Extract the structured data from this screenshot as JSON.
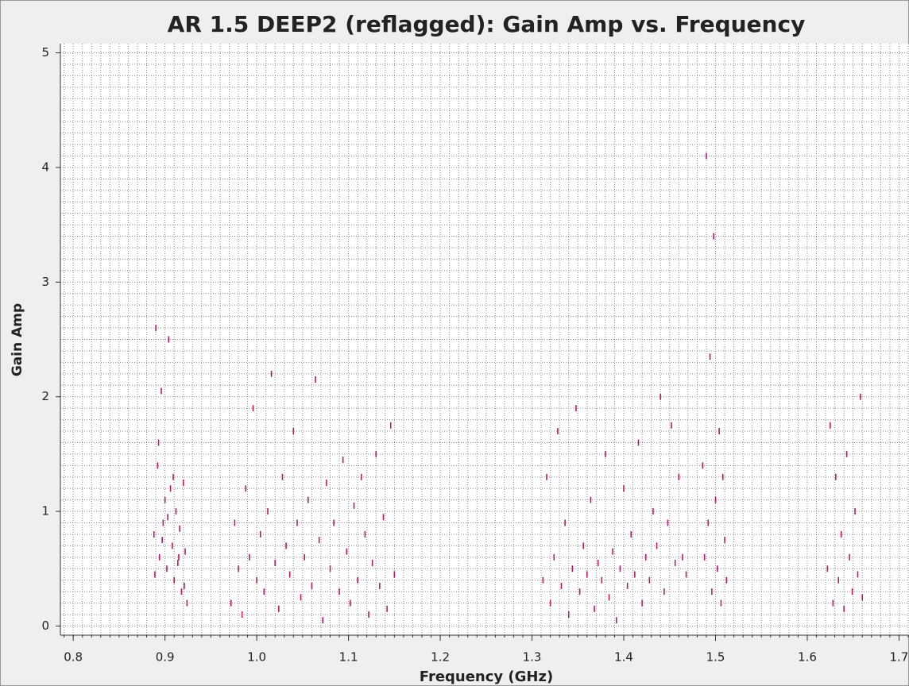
{
  "chart_data": {
    "type": "scatter",
    "title": "AR 1.5 DEEP2 (reflagged): Gain Amp vs. Frequency",
    "x_label": "Frequency (GHz)",
    "y_label": "Gain Amp",
    "color": "#c0175a",
    "grid": true,
    "minor_grid": {
      "x": 0.01,
      "y": 0.1
    },
    "xlim": [
      0.786,
      1.71
    ],
    "ylim": [
      -0.08,
      5.08
    ],
    "xticks": [
      0.8,
      0.9,
      {
        "value": 1.0,
        "label": "1.0"
      },
      1.1,
      1.2,
      1.3,
      1.4,
      1.5,
      1.6,
      1.7
    ],
    "yticks": [
      0,
      1,
      2,
      3,
      4,
      5
    ],
    "x": [
      0.888,
      0.89,
      0.892,
      0.894,
      0.896,
      0.898,
      0.9,
      0.902,
      0.904,
      0.906,
      0.908,
      0.91,
      0.912,
      0.914,
      0.916,
      0.918,
      0.92,
      0.922,
      0.924,
      0.889,
      0.893,
      0.897,
      0.903,
      0.909,
      0.915,
      0.921,
      0.972,
      0.976,
      0.98,
      0.984,
      0.988,
      0.992,
      0.996,
      1.0,
      1.004,
      1.008,
      1.012,
      1.016,
      1.02,
      1.024,
      1.028,
      1.032,
      1.036,
      1.04,
      1.044,
      1.048,
      1.052,
      1.056,
      1.06,
      1.064,
      1.068,
      1.072,
      1.076,
      1.08,
      1.084,
      1.09,
      1.094,
      1.098,
      1.102,
      1.106,
      1.11,
      1.114,
      1.118,
      1.122,
      1.126,
      1.13,
      1.134,
      1.138,
      1.142,
      1.146,
      1.15,
      1.312,
      1.316,
      1.32,
      1.324,
      1.328,
      1.332,
      1.336,
      1.34,
      1.344,
      1.348,
      1.352,
      1.356,
      1.36,
      1.364,
      1.368,
      1.372,
      1.376,
      1.38,
      1.384,
      1.388,
      1.392,
      1.396,
      1.4,
      1.404,
      1.408,
      1.412,
      1.416,
      1.42,
      1.424,
      1.428,
      1.432,
      1.436,
      1.44,
      1.444,
      1.448,
      1.452,
      1.456,
      1.46,
      1.464,
      1.468,
      1.486,
      1.488,
      1.49,
      1.492,
      1.494,
      1.496,
      1.498,
      1.5,
      1.502,
      1.504,
      1.506,
      1.508,
      1.51,
      1.512,
      1.622,
      1.625,
      1.628,
      1.631,
      1.634,
      1.637,
      1.64,
      1.643,
      1.646,
      1.649,
      1.652,
      1.655,
      1.658,
      1.66
    ],
    "values": [
      0.8,
      2.6,
      1.4,
      0.6,
      2.05,
      0.9,
      1.1,
      0.5,
      2.5,
      1.2,
      0.7,
      0.4,
      1.0,
      0.55,
      0.85,
      0.3,
      1.25,
      0.65,
      0.2,
      0.45,
      1.6,
      0.75,
      0.95,
      1.3,
      0.6,
      0.35,
      0.2,
      0.9,
      0.5,
      0.1,
      1.2,
      0.6,
      1.9,
      0.4,
      0.8,
      0.3,
      1.0,
      2.2,
      0.55,
      0.15,
      1.3,
      0.7,
      0.45,
      1.7,
      0.9,
      0.25,
      0.6,
      1.1,
      0.35,
      2.15,
      0.75,
      0.05,
      1.25,
      0.5,
      0.9,
      0.3,
      1.45,
      0.65,
      0.2,
      1.05,
      0.4,
      1.3,
      0.8,
      0.1,
      0.55,
      1.5,
      0.35,
      0.95,
      0.15,
      1.75,
      0.45,
      0.4,
      1.3,
      0.2,
      0.6,
      1.7,
      0.35,
      0.9,
      0.1,
      0.5,
      1.9,
      0.3,
      0.7,
      0.45,
      1.1,
      0.15,
      0.55,
      0.4,
      1.5,
      0.25,
      0.65,
      0.05,
      0.5,
      1.2,
      0.35,
      0.8,
      0.45,
      1.6,
      0.2,
      0.6,
      0.4,
      1.0,
      0.7,
      2.0,
      0.3,
      0.9,
      1.75,
      0.55,
      1.3,
      0.6,
      0.45,
      1.4,
      0.6,
      4.1,
      0.9,
      2.35,
      0.3,
      3.4,
      1.1,
      0.5,
      1.7,
      0.2,
      1.3,
      0.75,
      0.4,
      0.5,
      1.75,
      0.2,
      1.3,
      0.4,
      0.8,
      0.15,
      1.5,
      0.6,
      0.3,
      1.0,
      0.45,
      2.0,
      0.25
    ]
  }
}
